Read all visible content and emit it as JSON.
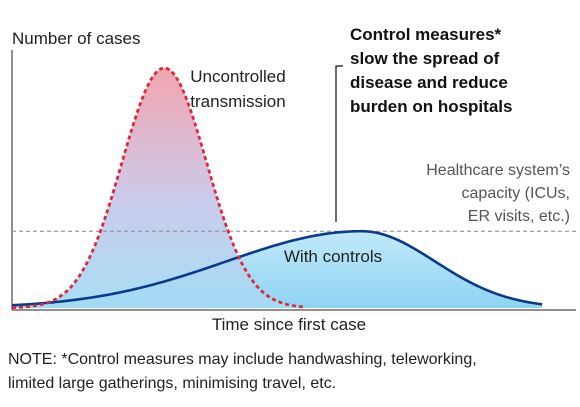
{
  "chart_data": {
    "type": "area",
    "ylabel": "Number of cases",
    "xlabel": "Time since first case",
    "series": [
      {
        "name": "Uncontrolled transmission",
        "shape": "tall-narrow-peak",
        "peak_x": 0.27,
        "peak_y": 1.0,
        "style": "dashed-red",
        "label_lines": [
          "Uncontrolled",
          "transmission"
        ]
      },
      {
        "name": "With controls",
        "shape": "low-wide-peak",
        "peak_x": 0.62,
        "peak_y": 0.32,
        "style": "solid-blue",
        "label_lines": [
          "With controls"
        ]
      }
    ],
    "reference_line": {
      "label_lines": [
        "Healthcare system’s",
        "capacity (ICUs,",
        "ER visits, etc.)"
      ],
      "y": 0.32,
      "style": "dashed-gray"
    },
    "annotation": {
      "lines": [
        "Control measures*",
        "slow the spread of",
        "disease and reduce",
        "burden on hospitals"
      ],
      "bold": true
    },
    "note_lines": [
      "NOTE: *Control measures may include handwashing, teleworking,",
      "limited large gatherings, minimising travel, etc."
    ],
    "colors": {
      "uncontrolled": "#e0283a",
      "controlled": "#0a3a8a",
      "capacity": "#8a8a8a",
      "fill_red": "#f4a0ad",
      "fill_blue": "#a9dcf5"
    }
  }
}
